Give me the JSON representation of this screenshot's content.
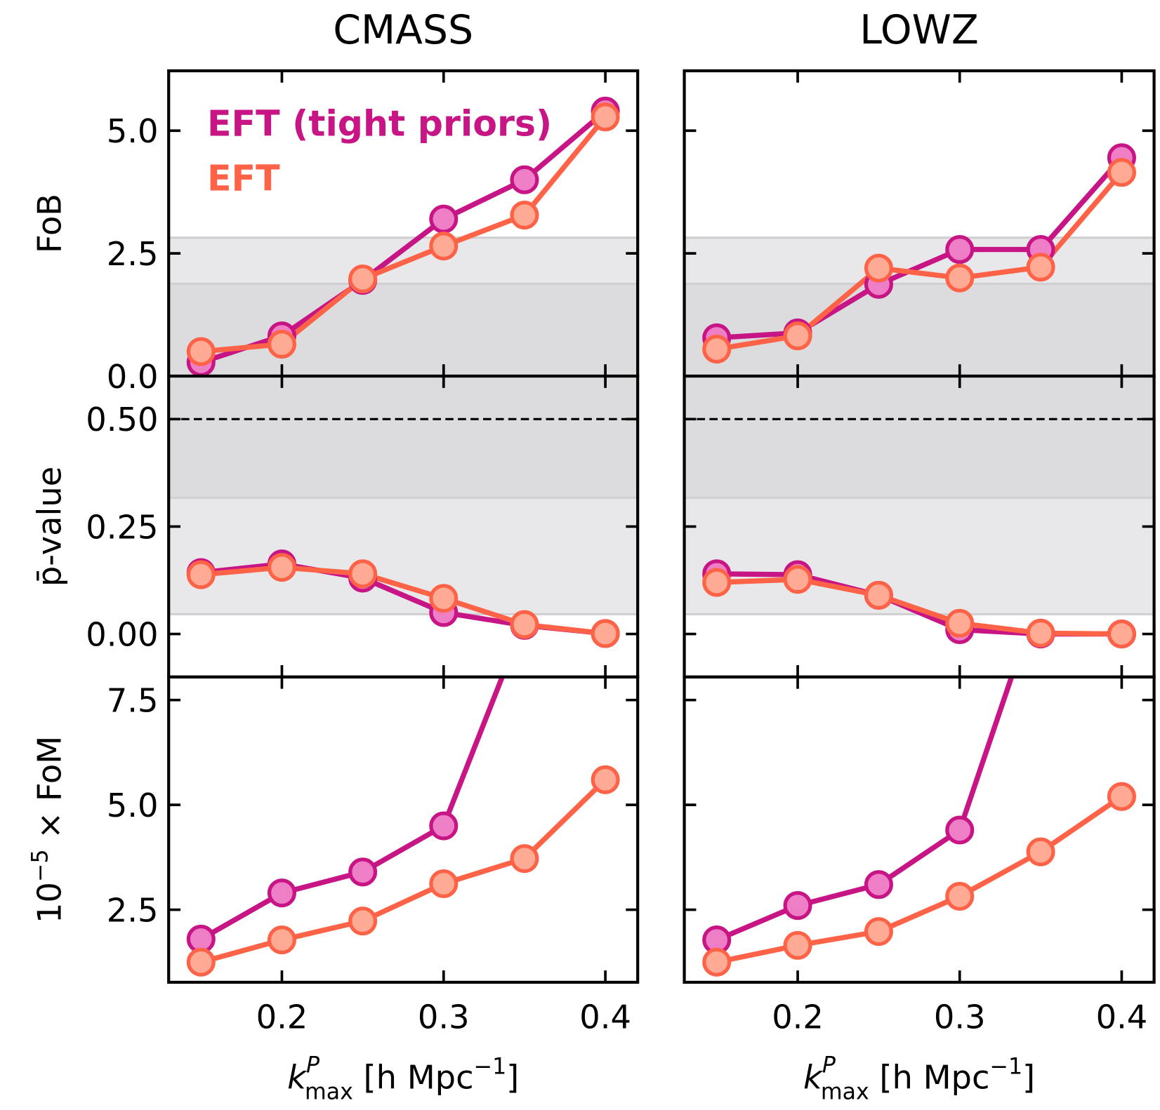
{
  "chart_data": [
    {
      "type": "line",
      "title": "CMASS",
      "ylabel": "FoB",
      "legend": "upper left",
      "x": [
        0.15,
        0.2,
        0.25,
        0.3,
        0.35,
        0.4
      ],
      "series": [
        {
          "name": "EFT (tight priors)",
          "color": "#c71585",
          "marker_color": "#ee7fc6",
          "values": [
            0.28,
            0.82,
            1.95,
            3.2,
            4.0,
            5.4
          ]
        },
        {
          "name": "EFT",
          "color": "#ff6347",
          "marker_color": "#ffaa94",
          "values": [
            0.5,
            0.65,
            1.98,
            2.65,
            3.28,
            5.28
          ]
        }
      ],
      "bands": [
        {
          "range": [
            0,
            1.88
          ],
          "color": "#dcdcde"
        },
        {
          "range": [
            1.88,
            2.82
          ],
          "color": "#e8e8ea"
        }
      ],
      "xlim": [
        0.13,
        0.42
      ],
      "xticks": [
        0.2,
        0.3,
        0.4
      ],
      "show_xticklabels": false,
      "ylim": [
        0,
        6.22
      ],
      "yticks": [
        {
          "value": 0,
          "label": "0.0"
        },
        {
          "value": 2.5,
          "label": "2.5"
        },
        {
          "value": 5,
          "label": "5.0"
        }
      ],
      "show_yticklabels": true
    },
    {
      "type": "line",
      "title": "LOWZ",
      "x": [
        0.15,
        0.2,
        0.25,
        0.3,
        0.35,
        0.4
      ],
      "series": [
        {
          "color": "#c71585",
          "marker_color": "#ee7fc6",
          "values": [
            0.78,
            0.88,
            1.87,
            2.58,
            2.58,
            4.45
          ]
        },
        {
          "color": "#ff6347",
          "marker_color": "#ffaa94",
          "values": [
            0.55,
            0.82,
            2.2,
            2.0,
            2.22,
            4.15
          ]
        }
      ],
      "bands": [
        {
          "range": [
            0,
            1.88
          ],
          "color": "#dcdcde"
        },
        {
          "range": [
            1.88,
            2.82
          ],
          "color": "#e8e8ea"
        }
      ],
      "xlim": [
        0.13,
        0.42
      ],
      "xticks": [
        0.2,
        0.3,
        0.4
      ],
      "show_xticklabels": false,
      "ylim": [
        0,
        6.22
      ],
      "yticks": [
        0,
        2.5,
        5
      ],
      "show_yticklabels": false
    },
    {
      "type": "line",
      "ylabel": "p̄-value",
      "x": [
        0.15,
        0.2,
        0.25,
        0.3,
        0.35,
        0.4
      ],
      "series": [
        {
          "color": "#c71585",
          "marker_color": "#ee7fc6",
          "values": [
            0.143,
            0.163,
            0.13,
            0.05,
            0.02,
            0.001
          ]
        },
        {
          "color": "#ff6347",
          "marker_color": "#ffaa94",
          "values": [
            0.138,
            0.155,
            0.14,
            0.083,
            0.022,
            0.001
          ]
        }
      ],
      "bands": [
        {
          "range": [
            0.046,
            0.317
          ],
          "color": "#e8e8ea"
        },
        {
          "range": [
            0.317,
            0.6
          ],
          "color": "#dcdcde"
        }
      ],
      "hline": 0.5,
      "xlim": [
        0.13,
        0.42
      ],
      "xticks": [
        0.2,
        0.3,
        0.4
      ],
      "show_xticklabels": false,
      "ylim": [
        -0.1,
        0.6
      ],
      "yticks": [
        {
          "value": 0,
          "label": "0.00"
        },
        {
          "value": 0.25,
          "label": "0.25"
        },
        {
          "value": 0.5,
          "label": "0.50"
        }
      ],
      "show_yticklabels": true
    },
    {
      "type": "line",
      "x": [
        0.15,
        0.2,
        0.25,
        0.3,
        0.35,
        0.4
      ],
      "series": [
        {
          "color": "#c71585",
          "marker_color": "#ee7fc6",
          "values": [
            0.14,
            0.138,
            0.09,
            0.01,
            0.0,
            0.0
          ]
        },
        {
          "color": "#ff6347",
          "marker_color": "#ffaa94",
          "values": [
            0.12,
            0.127,
            0.09,
            0.025,
            0.002,
            0.0
          ]
        }
      ],
      "bands": [
        {
          "range": [
            0.046,
            0.317
          ],
          "color": "#e8e8ea"
        },
        {
          "range": [
            0.317,
            0.6
          ],
          "color": "#dcdcde"
        }
      ],
      "hline": 0.5,
      "xlim": [
        0.13,
        0.42
      ],
      "xticks": [
        0.2,
        0.3,
        0.4
      ],
      "show_xticklabels": false,
      "ylim": [
        -0.1,
        0.6
      ],
      "yticks": [
        0,
        0.25,
        0.5
      ],
      "show_yticklabels": false
    },
    {
      "type": "line",
      "ylabel": {
        "base": "10",
        "exp": "−5",
        "rest": " × FoM"
      },
      "xlabel": {
        "base": "k",
        "sup": "P",
        "sub": "max",
        "rest": " [h Mpc",
        "exp": "−1",
        "close": "]"
      },
      "x": [
        0.15,
        0.2,
        0.25,
        0.3,
        0.35,
        0.4
      ],
      "series": [
        {
          "color": "#c71585",
          "marker_color": "#ee7fc6",
          "values": [
            1.8,
            2.9,
            3.4,
            4.5,
            9.4,
            null
          ]
        },
        {
          "color": "#ff6347",
          "marker_color": "#ffaa94",
          "values": [
            1.25,
            1.78,
            2.23,
            3.12,
            3.72,
            5.6
          ]
        }
      ],
      "xlim": [
        0.13,
        0.42
      ],
      "xticks": [
        0.2,
        0.3,
        0.4
      ],
      "show_xticklabels": true,
      "ylim": [
        0.77,
        8.05
      ],
      "yticks": [
        {
          "value": 2.5,
          "label": "2.5"
        },
        {
          "value": 5,
          "label": "5.0"
        },
        {
          "value": 7.5,
          "label": "7.5"
        }
      ],
      "show_yticklabels": true
    },
    {
      "type": "line",
      "xlabel": {
        "base": "k",
        "sup": "P",
        "sub": "max",
        "rest": " [h Mpc",
        "exp": "−1",
        "close": "]"
      },
      "x": [
        0.15,
        0.2,
        0.25,
        0.3,
        0.35,
        0.4
      ],
      "series": [
        {
          "color": "#c71585",
          "marker_color": "#ee7fc6",
          "values": [
            1.78,
            2.6,
            3.1,
            4.4,
            10.1,
            null
          ]
        },
        {
          "color": "#ff6347",
          "marker_color": "#ffaa94",
          "values": [
            1.25,
            1.65,
            1.98,
            2.82,
            3.88,
            5.2
          ]
        }
      ],
      "xlim": [
        0.13,
        0.42
      ],
      "xticks": [
        0.2,
        0.3,
        0.4
      ],
      "show_xticklabels": true,
      "ylim": [
        0.77,
        8.05
      ],
      "yticks": [
        2.5,
        5,
        7.5
      ],
      "show_yticklabels": false
    }
  ]
}
